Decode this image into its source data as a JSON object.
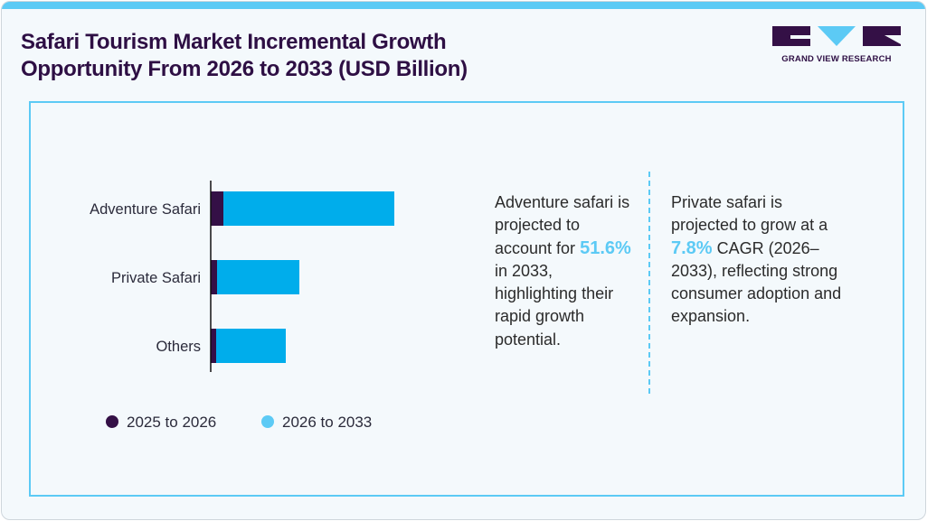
{
  "header": {
    "title_line1": "Safari Tourism Market Incremental Growth",
    "title_line2": "Opportunity From 2026 to 2033 (USD Billion)",
    "logo_text": "GRAND VIEW RESEARCH"
  },
  "colors": {
    "dark": "#341046",
    "blue": "#00adeb",
    "legend_blue": "#5ccaf5",
    "accent": "#5ccaf5"
  },
  "chart_data": {
    "type": "bar",
    "orientation": "horizontal",
    "stacked": true,
    "categories": [
      "Adventure Safari",
      "Private Safari",
      "Others"
    ],
    "series": [
      {
        "name": "2025 to 2026",
        "values": [
          0.7,
          0.35,
          0.3
        ]
      },
      {
        "name": "2026 to 2033",
        "values": [
          9.45,
          4.55,
          3.85
        ]
      }
    ],
    "value_axis_shown": false,
    "grid": false,
    "legend_placement": "bottom"
  },
  "notes": {
    "left": {
      "pre": "Adventure safari is projected to account for",
      "highlight": "51.6%",
      "post": "in 2033, highlighting their rapid growth potential."
    },
    "right": {
      "pre": "Private safari is projected to grow at a",
      "highlight": "7.8%",
      "post": "CAGR (2026–2033), reflecting strong consumer adoption and expansion."
    }
  }
}
